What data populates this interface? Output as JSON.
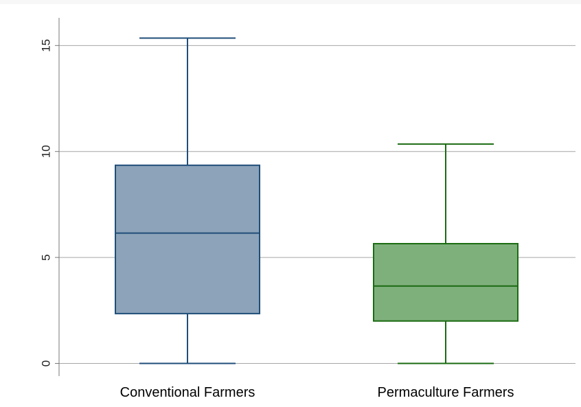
{
  "chart_data": {
    "type": "box",
    "title": "",
    "xlabel": "",
    "ylabel": "",
    "ylim": [
      -0.6,
      16.5
    ],
    "yticks": [
      0,
      5,
      10,
      15
    ],
    "ytick_labels": [
      "0",
      "5",
      "10",
      "15"
    ],
    "grid": true,
    "legend": "none",
    "categories": [
      "Conventional Farmers",
      "Permaculture Farmers"
    ],
    "boxes": [
      {
        "whisker_low": 0,
        "q1": 2.35,
        "median": 6.15,
        "q3": 9.35,
        "whisker_high": 15.35,
        "fill": "#8ca3b9",
        "stroke": "#1f4e79"
      },
      {
        "whisker_low": 0,
        "q1": 2.0,
        "median": 3.65,
        "q3": 5.65,
        "whisker_high": 10.35,
        "fill": "#7eb07c",
        "stroke": "#1a6b12"
      }
    ],
    "colors": {
      "gridline": "#a6a6a6",
      "axis": "#777777",
      "text": "#000000"
    }
  }
}
